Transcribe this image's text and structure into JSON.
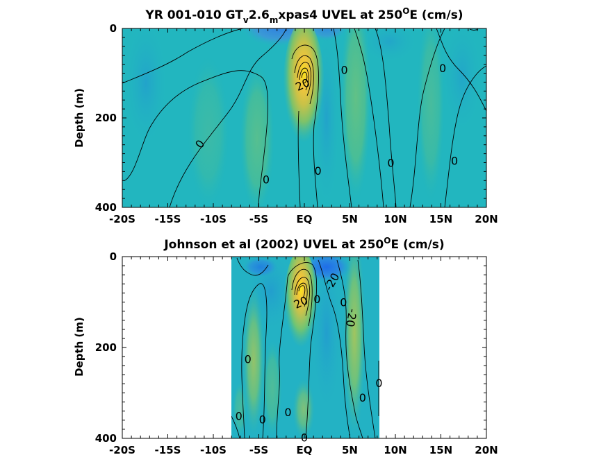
{
  "chart_data": [
    {
      "type": "heatmap",
      "title": "YR 001-010 GT",
      "title_parts": {
        "sub1": "v",
        "mid": "2.6",
        "sub2": "m",
        "tail": "xpas4 UVEL at 250",
        "sup": "O",
        "end": "E (cm/s)"
      },
      "ylabel": "Depth (m)",
      "x_ticks": [
        "-20S",
        "-15S",
        "-10S",
        "-5S",
        "EQ",
        "5N",
        "10N",
        "15N",
        "20N"
      ],
      "x_tick_values": [
        -20,
        -15,
        -10,
        -5,
        0,
        5,
        10,
        15,
        20
      ],
      "y_ticks": [
        "0",
        "200",
        "400"
      ],
      "y_tick_values": [
        0,
        200,
        400
      ],
      "xlim": [
        -20,
        20
      ],
      "ylim": [
        0,
        400
      ],
      "data_extent": [
        -20,
        20
      ],
      "contour_labels": [
        {
          "text": "0",
          "lat": -11.5,
          "depth": 258,
          "rot": -55
        },
        {
          "text": "0",
          "lat": -4.2,
          "depth": 337,
          "rot": 0
        },
        {
          "text": "0",
          "lat": 1.5,
          "depth": 318,
          "rot": 0
        },
        {
          "text": "0",
          "lat": 4.4,
          "depth": 92,
          "rot": 0
        },
        {
          "text": "0",
          "lat": 9.5,
          "depth": 300,
          "rot": 0
        },
        {
          "text": "0",
          "lat": 15.2,
          "depth": 88,
          "rot": 0
        },
        {
          "text": "0",
          "lat": 16.5,
          "depth": 295,
          "rot": 0
        },
        {
          "text": "20",
          "lat": -0.2,
          "depth": 125,
          "rot": -25
        }
      ],
      "maximum": {
        "lat": 0.0,
        "depth": 90,
        "value": 60
      }
    },
    {
      "type": "heatmap",
      "title": "Johnson et al (2002) UVEL at 250",
      "title_parts": {
        "sup": "O",
        "end": "E (cm/s)"
      },
      "ylabel": "Depth (m)",
      "x_ticks": [
        "-20S",
        "-15S",
        "-10S",
        "-5S",
        "EQ",
        "5N",
        "10N",
        "15N",
        "20N"
      ],
      "x_tick_values": [
        -20,
        -15,
        -10,
        -5,
        0,
        5,
        10,
        15,
        20
      ],
      "y_ticks": [
        "0",
        "200",
        "400"
      ],
      "y_tick_values": [
        0,
        200,
        400
      ],
      "xlim": [
        -20,
        20
      ],
      "ylim": [
        0,
        400
      ],
      "data_extent": [
        -8,
        8.3
      ],
      "contour_labels": [
        {
          "text": "0",
          "lat": -6.2,
          "depth": 225,
          "rot": 0
        },
        {
          "text": "0",
          "lat": -7.2,
          "depth": 350,
          "rot": 0
        },
        {
          "text": "0",
          "lat": -4.6,
          "depth": 358,
          "rot": 0
        },
        {
          "text": "0",
          "lat": -1.8,
          "depth": 342,
          "rot": 0
        },
        {
          "text": "0",
          "lat": 0.0,
          "depth": 398,
          "rot": 0
        },
        {
          "text": "0",
          "lat": 1.4,
          "depth": 93,
          "rot": 0
        },
        {
          "text": "0",
          "lat": 4.3,
          "depth": 100,
          "rot": 0
        },
        {
          "text": "0",
          "lat": 6.4,
          "depth": 310,
          "rot": 0
        },
        {
          "text": "0",
          "lat": 8.2,
          "depth": 278,
          "rot": 0
        },
        {
          "text": "-20",
          "lat": 3.0,
          "depth": 55,
          "rot": -60
        },
        {
          "text": "-20",
          "lat": 5.2,
          "depth": 135,
          "rot": 100
        },
        {
          "text": "20",
          "lat": -0.4,
          "depth": 100,
          "rot": -25
        }
      ],
      "maximum": {
        "lat": 0.0,
        "depth": 75,
        "value": 60
      }
    }
  ]
}
